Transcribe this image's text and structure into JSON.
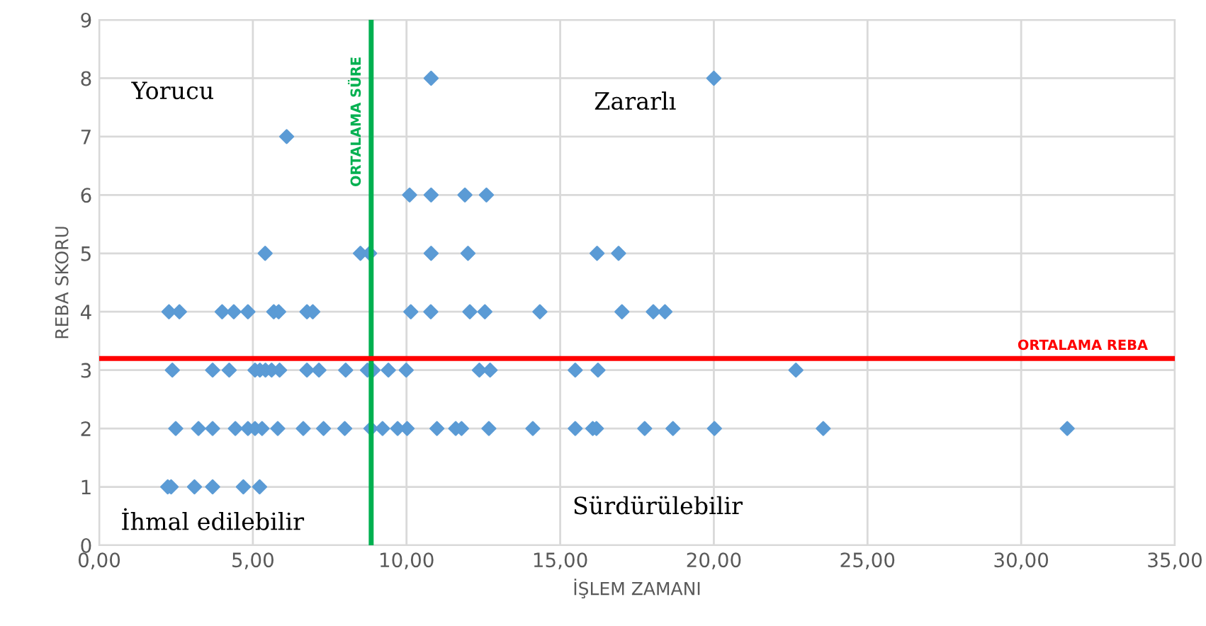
{
  "chart_data": {
    "type": "scatter",
    "xlabel": "İŞLEM ZAMANI",
    "ylabel": "REBA SKORU",
    "marker": "diamond",
    "grid": true,
    "legend": false,
    "xlim": [
      0,
      35
    ],
    "ylim": [
      0,
      9
    ],
    "xticks": [
      {
        "value": 0,
        "label": "0,00"
      },
      {
        "value": 5,
        "label": "5,00"
      },
      {
        "value": 10,
        "label": "10,00"
      },
      {
        "value": 15,
        "label": "15,00"
      },
      {
        "value": 20,
        "label": "20,00"
      },
      {
        "value": 25,
        "label": "25,00"
      },
      {
        "value": 30,
        "label": "30,00"
      },
      {
        "value": 35,
        "label": "35,00"
      }
    ],
    "yticks": [
      0,
      1,
      2,
      3,
      4,
      5,
      6,
      7,
      8,
      9
    ],
    "series": [
      {
        "color": "#5b9bd5",
        "x": [
          10.8,
          20.0,
          6.1,
          10.1,
          10.8,
          11.9,
          12.6,
          5.4,
          8.5,
          8.8,
          10.8,
          12.0,
          16.2,
          16.9,
          2.27,
          2.61,
          4.0,
          4.38,
          4.84,
          5.68,
          5.84,
          6.76,
          6.95,
          10.14,
          10.79,
          12.06,
          12.55,
          14.34,
          17.01,
          18.03,
          18.41,
          2.38,
          3.69,
          4.23,
          5.07,
          5.23,
          5.41,
          5.61,
          5.87,
          6.76,
          7.15,
          8.02,
          8.73,
          8.91,
          9.41,
          9.99,
          12.37,
          12.72,
          15.49,
          16.23,
          22.67,
          2.49,
          3.23,
          3.69,
          4.43,
          4.84,
          5.07,
          5.3,
          5.81,
          6.64,
          7.3,
          7.99,
          8.84,
          9.22,
          9.71,
          10.02,
          10.99,
          11.6,
          11.79,
          12.68,
          14.11,
          15.49,
          16.06,
          16.18,
          17.75,
          18.67,
          20.02,
          23.56,
          31.5,
          2.23,
          2.34,
          3.1,
          3.69,
          4.69,
          5.22
        ],
        "values": [
          8,
          8,
          7,
          6,
          6,
          6,
          6,
          5,
          5,
          5,
          5,
          5,
          5,
          5,
          4,
          4,
          4,
          4,
          4,
          4,
          4,
          4,
          4,
          4,
          4,
          4,
          4,
          4,
          4,
          4,
          4,
          3,
          3,
          3,
          3,
          3,
          3,
          3,
          3,
          3,
          3,
          3,
          3,
          3,
          3,
          3,
          3,
          3,
          3,
          3,
          3,
          2,
          2,
          2,
          2,
          2,
          2,
          2,
          2,
          2,
          2,
          2,
          2,
          2,
          2,
          2,
          2,
          2,
          2,
          2,
          2,
          2,
          2,
          2,
          2,
          2,
          2,
          2,
          2,
          1,
          1,
          1,
          1,
          1,
          1
        ]
      }
    ],
    "ref_lines": [
      {
        "axis": "x",
        "value": 8.85,
        "label": "ORTALAMA SÜRE",
        "color": "#00b050"
      },
      {
        "axis": "y",
        "value": 3.2,
        "label": "ORTALAMA REBA",
        "color": "#ff0000"
      }
    ],
    "annotations": [
      "Yorucu",
      "Zararlı",
      "İhmal edilebilir",
      "Sürdürülebilir"
    ]
  }
}
